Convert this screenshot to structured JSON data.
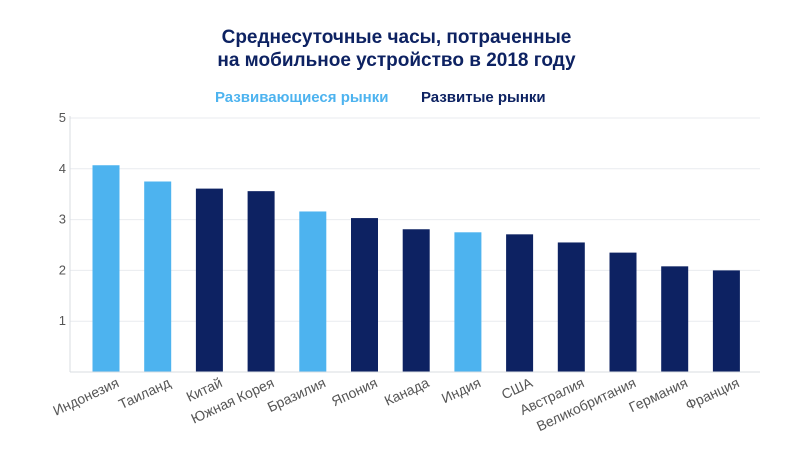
{
  "chart_data": {
    "type": "bar",
    "title_line1": "Среднесуточные часы, потраченные",
    "title_line2": "на мобильное устройство в 2018 году",
    "legend": [
      {
        "name": "Развивающиеся рынки",
        "color": "#4db3ef"
      },
      {
        "name": "Развитые рынки",
        "color": "#0d2262"
      }
    ],
    "categories": [
      "Индонезия",
      "Таиланд",
      "Китай",
      "Южная Корея",
      "Бразилия",
      "Япония",
      "Канада",
      "Индия",
      "США",
      "Австралия",
      "Великобритания",
      "Германия",
      "Франция"
    ],
    "values": [
      4.07,
      3.75,
      3.61,
      3.56,
      3.16,
      3.03,
      2.81,
      2.75,
      2.71,
      2.55,
      2.35,
      2.08,
      2.0
    ],
    "groups": [
      "Развивающиеся рынки",
      "Развивающиеся рынки",
      "Развитые рынки",
      "Развитые рынки",
      "Развивающиеся рынки",
      "Развитые рынки",
      "Развитые рынки",
      "Развивающиеся рынки",
      "Развитые рынки",
      "Развитые рынки",
      "Развитые рынки",
      "Развитые рынки",
      "Развитые рынки"
    ],
    "yticks": [
      1,
      2,
      3,
      4,
      5
    ],
    "ylim": [
      0,
      5
    ],
    "xlabel": "",
    "ylabel": ""
  }
}
